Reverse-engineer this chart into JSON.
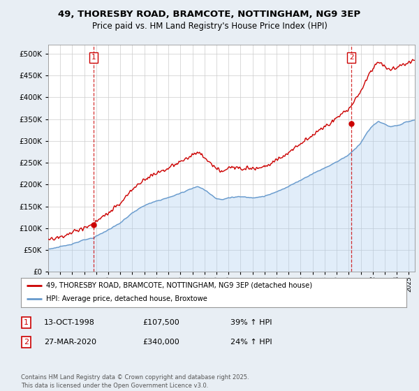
{
  "title_line1": "49, THORESBY ROAD, BRAMCOTE, NOTTINGHAM, NG9 3EP",
  "title_line2": "Price paid vs. HM Land Registry's House Price Index (HPI)",
  "legend_property": "49, THORESBY ROAD, BRAMCOTE, NOTTINGHAM, NG9 3EP (detached house)",
  "legend_hpi": "HPI: Average price, detached house, Broxtowe",
  "annotation1_label": "1",
  "annotation1_date": "13-OCT-1998",
  "annotation1_price": "£107,500",
  "annotation1_hpi": "39% ↑ HPI",
  "annotation2_label": "2",
  "annotation2_date": "27-MAR-2020",
  "annotation2_price": "£340,000",
  "annotation2_hpi": "24% ↑ HPI",
  "footnote": "Contains HM Land Registry data © Crown copyright and database right 2025.\nThis data is licensed under the Open Government Licence v3.0.",
  "sale1_year": 1998.79,
  "sale1_price": 107500,
  "sale2_year": 2020.23,
  "sale2_price": 340000,
  "property_color": "#cc0000",
  "hpi_color": "#6699cc",
  "hpi_fill_color": "#aaccee",
  "vline_color": "#cc0000",
  "background_color": "#e8eef4",
  "plot_bg": "#ffffff",
  "xmin": 1995,
  "xmax": 2025.5,
  "ymin": 0,
  "ymax": 520000,
  "hpi_base_1995": 52000,
  "hpi_base_1998": 77000,
  "prop_scale": 1.395
}
